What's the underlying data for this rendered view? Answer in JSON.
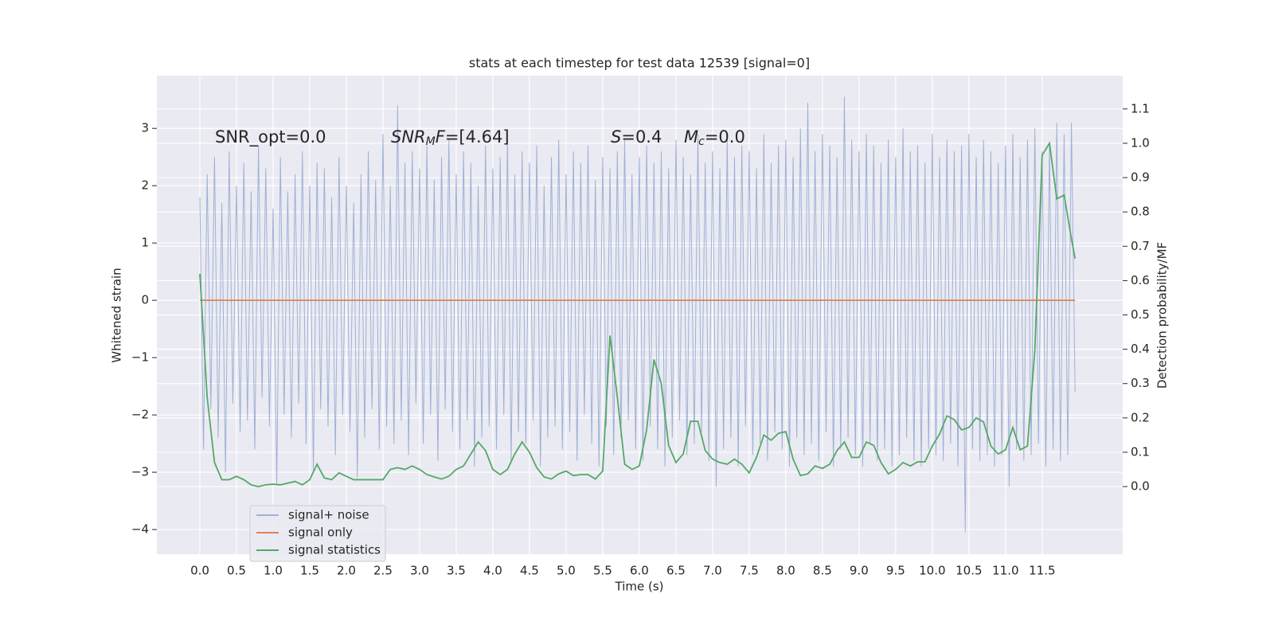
{
  "chart_data": {
    "type": "line",
    "title": "stats at each timestep for test data 12539 [signal=0]",
    "xlabel": "Time (s)",
    "ylabel": "Whitened strain",
    "y2label": "Detection probability/MF",
    "xlim": [
      -0.587,
      12.6
    ],
    "ylim": [
      -4.43,
      3.92
    ],
    "y2lim": [
      -0.197,
      1.197
    ],
    "xticks": [
      {
        "value": 0,
        "label": "0.0"
      },
      0.5,
      {
        "value": 1,
        "label": "1.0"
      },
      1.5,
      {
        "value": 2,
        "label": "2.0"
      },
      2.5,
      {
        "value": 3,
        "label": "3.0"
      },
      3.5,
      {
        "value": 4,
        "label": "4.0"
      },
      4.5,
      {
        "value": 5,
        "label": "5.0"
      },
      5.5,
      {
        "value": 6,
        "label": "6.0"
      },
      6.5,
      {
        "value": 7,
        "label": "7.0"
      },
      7.5,
      {
        "value": 8,
        "label": "8.0"
      },
      8.5,
      {
        "value": 9,
        "label": "9.0"
      },
      9.5,
      {
        "value": 10,
        "label": "10.0"
      },
      10.5,
      {
        "value": 11,
        "label": "11.0"
      },
      11.5
    ],
    "yticks": [
      {
        "value": -4,
        "label": "−4"
      },
      {
        "value": -3,
        "label": "−3"
      },
      {
        "value": -2,
        "label": "−2"
      },
      {
        "value": -1,
        "label": "−1"
      },
      0,
      1,
      2,
      3
    ],
    "y2ticks": [
      {
        "value": 0,
        "label": "0.0"
      },
      0.1,
      0.2,
      0.3,
      0.4,
      0.5,
      0.6,
      0.7,
      0.8,
      0.9,
      {
        "value": 1,
        "label": "1.0"
      },
      1.1
    ],
    "grid": true,
    "legend": "lower left",
    "annotations": [
      {
        "parts": [
          "SNR_opt=0.0"
        ]
      },
      {
        "parts": [
          "SNR",
          "M",
          "F",
          "=[4.64]"
        ]
      },
      {
        "parts": [
          "S",
          "=0.4"
        ]
      },
      {
        "parts": [
          "M",
          "c",
          "=0.0"
        ]
      }
    ],
    "series": [
      {
        "name": "signal+ noise",
        "color": "#9fb1d6",
        "axis": "y",
        "x": [
          0,
          0.05,
          0.1,
          0.15,
          0.2,
          0.25,
          0.3,
          0.35,
          0.4,
          0.45,
          0.5,
          0.55,
          0.6,
          0.65,
          0.7,
          0.75,
          0.8,
          0.85,
          0.9,
          0.95,
          1,
          1.05,
          1.1,
          1.15,
          1.2,
          1.25,
          1.3,
          1.35,
          1.4,
          1.45,
          1.5,
          1.55,
          1.6,
          1.65,
          1.7,
          1.75,
          1.8,
          1.85,
          1.9,
          1.95,
          2,
          2.05,
          2.1,
          2.15,
          2.2,
          2.25,
          2.3,
          2.35,
          2.4,
          2.45,
          2.5,
          2.55,
          2.6,
          2.65,
          2.7,
          2.75,
          2.8,
          2.85,
          2.9,
          2.95,
          3,
          3.05,
          3.1,
          3.15,
          3.2,
          3.25,
          3.3,
          3.35,
          3.4,
          3.45,
          3.5,
          3.55,
          3.6,
          3.65,
          3.7,
          3.75,
          3.8,
          3.85,
          3.9,
          3.95,
          4,
          4.05,
          4.1,
          4.15,
          4.2,
          4.25,
          4.3,
          4.35,
          4.4,
          4.45,
          4.5,
          4.55,
          4.6,
          4.65,
          4.7,
          4.75,
          4.8,
          4.85,
          4.9,
          4.95,
          5,
          5.05,
          5.1,
          5.15,
          5.2,
          5.25,
          5.3,
          5.35,
          5.4,
          5.45,
          5.5,
          5.55,
          5.6,
          5.65,
          5.7,
          5.75,
          5.8,
          5.85,
          5.9,
          5.95,
          6,
          6.05,
          6.1,
          6.15,
          6.2,
          6.25,
          6.3,
          6.35,
          6.4,
          6.45,
          6.5,
          6.55,
          6.6,
          6.65,
          6.7,
          6.75,
          6.8,
          6.85,
          6.9,
          6.95,
          7,
          7.05,
          7.1,
          7.15,
          7.2,
          7.25,
          7.3,
          7.35,
          7.4,
          7.45,
          7.5,
          7.55,
          7.6,
          7.65,
          7.7,
          7.75,
          7.8,
          7.85,
          7.9,
          7.95,
          8,
          8.05,
          8.1,
          8.15,
          8.2,
          8.25,
          8.3,
          8.35,
          8.4,
          8.45,
          8.5,
          8.55,
          8.6,
          8.65,
          8.7,
          8.75,
          8.8,
          8.85,
          8.9,
          8.95,
          9,
          9.05,
          9.1,
          9.15,
          9.2,
          9.25,
          9.3,
          9.35,
          9.4,
          9.45,
          9.5,
          9.55,
          9.6,
          9.65,
          9.7,
          9.75,
          9.8,
          9.85,
          9.9,
          9.95,
          10,
          10.05,
          10.1,
          10.15,
          10.2,
          10.25,
          10.3,
          10.35,
          10.4,
          10.45,
          10.5,
          10.55,
          10.6,
          10.65,
          10.7,
          10.75,
          10.8,
          10.85,
          10.9,
          10.95,
          11,
          11.05,
          11.1,
          11.15,
          11.2,
          11.25,
          11.3,
          11.35,
          11.4,
          11.45,
          11.5,
          11.55,
          11.6,
          11.65,
          11.7,
          11.75,
          11.8,
          11.85,
          11.9,
          11.95
        ],
        "values": [
          1.8,
          -2.6,
          2.2,
          -1.9,
          2.5,
          -2.4,
          1.7,
          -3.0,
          2.6,
          -1.8,
          2.0,
          -2.3,
          2.4,
          -2.1,
          1.9,
          -2.6,
          2.7,
          -1.7,
          2.3,
          -2.2,
          1.6,
          -3.2,
          2.5,
          -2.0,
          1.9,
          -2.4,
          2.2,
          -1.8,
          2.6,
          -2.5,
          2.0,
          -3.0,
          2.4,
          -1.9,
          2.3,
          -2.2,
          1.8,
          -2.7,
          2.5,
          -2.0,
          2.0,
          -2.3,
          1.7,
          -3.1,
          2.2,
          -2.4,
          2.6,
          -1.9,
          2.1,
          -2.6,
          2.9,
          -2.2,
          2.0,
          -2.5,
          3.4,
          -2.1,
          2.4,
          -2.7,
          2.6,
          -1.8,
          2.3,
          -2.5,
          2.7,
          -2.0,
          2.1,
          -2.8,
          2.5,
          -1.9,
          2.8,
          -2.3,
          2.2,
          -2.6,
          2.6,
          -2.1,
          2.4,
          -2.9,
          2.0,
          -2.4,
          2.7,
          -2.2,
          2.3,
          -2.6,
          2.5,
          -2.0,
          2.8,
          -2.8,
          2.2,
          -2.3,
          2.6,
          -2.5,
          2.4,
          -2.1,
          2.7,
          -2.9,
          2.0,
          -2.4,
          2.5,
          -2.2,
          2.8,
          -2.6,
          2.2,
          -2.3,
          2.6,
          -2.8,
          2.4,
          -2.0,
          2.7,
          -2.5,
          2.1,
          -2.9,
          2.5,
          -2.2,
          2.3,
          -2.7,
          2.6,
          -2.4,
          2.8,
          -2.1,
          2.2,
          -2.6,
          2.5,
          -2.8,
          2.7,
          -2.2,
          2.4,
          -2.6,
          2.6,
          -2.9,
          2.3,
          -2.4,
          2.8,
          -2.1,
          2.5,
          -2.7,
          2.2,
          -2.5,
          2.9,
          -2.3,
          2.4,
          -2.8,
          2.6,
          -3.25,
          2.3,
          -2.6,
          2.8,
          -2.4,
          2.5,
          -2.9,
          2.7,
          -2.2,
          2.6,
          -2.7,
          2.3,
          -2.5,
          2.9,
          -2.8,
          2.4,
          -2.3,
          2.7,
          -2.6,
          2.8,
          -2.9,
          2.5,
          -2.4,
          3.0,
          -2.7,
          3.45,
          -2.5,
          2.6,
          -2.8,
          2.9,
          -2.3,
          2.7,
          -2.9,
          2.5,
          -2.6,
          3.55,
          -2.4,
          2.8,
          -2.7,
          2.6,
          -2.9,
          2.9,
          -2.5,
          2.7,
          -2.8,
          2.4,
          -2.6,
          2.8,
          -2.9,
          2.5,
          -2.7,
          3.0,
          -2.4,
          2.6,
          -2.8,
          2.7,
          -2.9,
          2.4,
          -2.6,
          2.9,
          -2.7,
          2.5,
          -2.8,
          2.8,
          -2.5,
          2.6,
          -2.9,
          2.7,
          -4.05,
          2.9,
          -2.6,
          2.5,
          -2.8,
          2.8,
          -2.7,
          2.6,
          -2.9,
          2.4,
          -2.7,
          2.7,
          -3.25,
          2.9,
          -2.6,
          2.5,
          -2.8,
          2.8,
          -2.7,
          3.0,
          -2.5,
          2.6,
          -2.9,
          2.7,
          -2.6,
          3.1,
          -2.8,
          2.9,
          -2.7,
          3.1,
          -1.6
        ]
      },
      {
        "name": "signal only",
        "color": "#dd8452",
        "axis": "y",
        "x": [
          0,
          11.95
        ],
        "values": [
          0,
          0
        ]
      },
      {
        "name": "signal statistics",
        "color": "#55a868",
        "axis": "y2",
        "x": [
          0,
          0.1,
          0.2,
          0.3,
          0.4,
          0.5,
          0.6,
          0.7,
          0.8,
          0.9,
          1,
          1.1,
          1.2,
          1.3,
          1.4,
          1.5,
          1.6,
          1.7,
          1.8,
          1.9,
          2,
          2.1,
          2.2,
          2.3,
          2.4,
          2.5,
          2.6,
          2.7,
          2.8,
          2.9,
          3,
          3.1,
          3.2,
          3.3,
          3.4,
          3.5,
          3.6,
          3.7,
          3.8,
          3.9,
          4,
          4.1,
          4.2,
          4.3,
          4.4,
          4.5,
          4.6,
          4.7,
          4.8,
          4.9,
          5,
          5.1,
          5.2,
          5.3,
          5.4,
          5.5,
          5.6,
          5.7,
          5.8,
          5.9,
          6,
          6.1,
          6.2,
          6.3,
          6.4,
          6.5,
          6.6,
          6.7,
          6.8,
          6.9,
          7,
          7.1,
          7.2,
          7.3,
          7.4,
          7.5,
          7.6,
          7.7,
          7.8,
          7.9,
          8,
          8.1,
          8.2,
          8.3,
          8.4,
          8.5,
          8.6,
          8.7,
          8.8,
          8.9,
          9,
          9.1,
          9.2,
          9.3,
          9.4,
          9.5,
          9.6,
          9.7,
          9.8,
          9.9,
          10,
          10.1,
          10.2,
          10.3,
          10.4,
          10.5,
          10.6,
          10.7,
          10.8,
          10.9,
          11,
          11.1,
          11.2,
          11.3,
          11.4,
          11.5,
          11.6,
          11.7,
          11.8,
          11.9,
          11.95
        ],
        "values": [
          0.62,
          0.26,
          0.07,
          0.02,
          0.02,
          0.03,
          0.02,
          0.005,
          0,
          0.005,
          0.007,
          0.005,
          0.01,
          0.015,
          0.005,
          0.02,
          0.065,
          0.025,
          0.02,
          0.04,
          0.03,
          0.02,
          0.02,
          0.02,
          0.02,
          0.02,
          0.05,
          0.055,
          0.05,
          0.06,
          0.05,
          0.035,
          0.028,
          0.022,
          0.03,
          0.05,
          0.06,
          0.095,
          0.13,
          0.105,
          0.05,
          0.035,
          0.05,
          0.095,
          0.13,
          0.1,
          0.055,
          0.028,
          0.022,
          0.037,
          0.045,
          0.032,
          0.035,
          0.035,
          0.022,
          0.045,
          0.44,
          0.26,
          0.065,
          0.05,
          0.06,
          0.165,
          0.37,
          0.3,
          0.12,
          0.07,
          0.095,
          0.19,
          0.19,
          0.105,
          0.08,
          0.07,
          0.065,
          0.08,
          0.065,
          0.04,
          0.085,
          0.15,
          0.135,
          0.155,
          0.16,
          0.08,
          0.032,
          0.037,
          0.06,
          0.053,
          0.065,
          0.105,
          0.13,
          0.085,
          0.085,
          0.13,
          0.12,
          0.07,
          0.037,
          0.05,
          0.07,
          0.06,
          0.072,
          0.072,
          0.118,
          0.153,
          0.206,
          0.195,
          0.165,
          0.172,
          0.2,
          0.188,
          0.118,
          0.095,
          0.107,
          0.172,
          0.107,
          0.118,
          0.397,
          0.965,
          1.0,
          0.838,
          0.849,
          0.722,
          0.664
        ]
      }
    ]
  }
}
